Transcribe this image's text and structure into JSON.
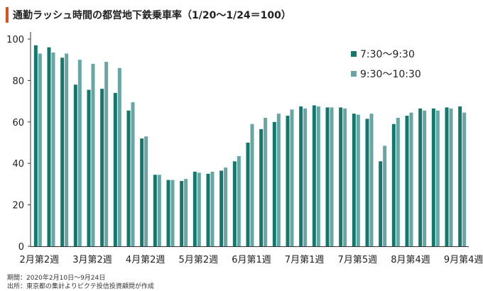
{
  "title": "通勤ラッシュ時間の都営地下鉄乗車率（1/20〜1/24＝100）",
  "footnotes": {
    "period": "期間：2020年2月10日〜9月24日",
    "source": "出所：東京都の集計よりピクテ投信投資顧問が作成"
  },
  "colors": {
    "accent": "#d9531e",
    "series1": "#14796c",
    "series2": "#67a6a3"
  },
  "chart_data": {
    "type": "bar",
    "title": "通勤ラッシュ時間の都営地下鉄乗車率（1/20〜1/24＝100）",
    "ylim": [
      0,
      100
    ],
    "yticks": [
      0,
      20,
      40,
      60,
      80,
      100
    ],
    "grid": false,
    "legend": "top-right",
    "x_tick_labels": [
      "2月第2週",
      "3月第2週",
      "4月第2週",
      "5月第2週",
      "6月第1週",
      "7月第1週",
      "7月第5週",
      "8月第4週",
      "9月第4週"
    ],
    "x_tick_positions": [
      0,
      4,
      8,
      12,
      16,
      20,
      24,
      28,
      32
    ],
    "series": [
      {
        "name": "7:30〜9:30",
        "values": [
          97,
          96,
          91,
          78,
          75.5,
          76,
          74,
          65.5,
          52,
          34.5,
          32,
          31.5,
          36,
          35,
          36.5,
          41,
          50,
          56.5,
          60,
          63,
          67.5,
          68,
          67,
          67,
          64,
          61.5,
          41,
          59,
          63,
          66.5,
          66.5,
          67,
          67.5
        ]
      },
      {
        "name": "9:30〜10:30",
        "values": [
          93,
          93.5,
          93,
          90,
          88,
          89,
          86,
          69.5,
          53,
          34.5,
          32,
          32.5,
          35.5,
          36,
          38,
          43.5,
          59,
          62,
          64,
          66,
          66.5,
          67.5,
          67,
          66.5,
          63.5,
          64,
          48.5,
          62,
          64.5,
          65.5,
          65.5,
          66.5,
          64.5
        ]
      }
    ]
  }
}
